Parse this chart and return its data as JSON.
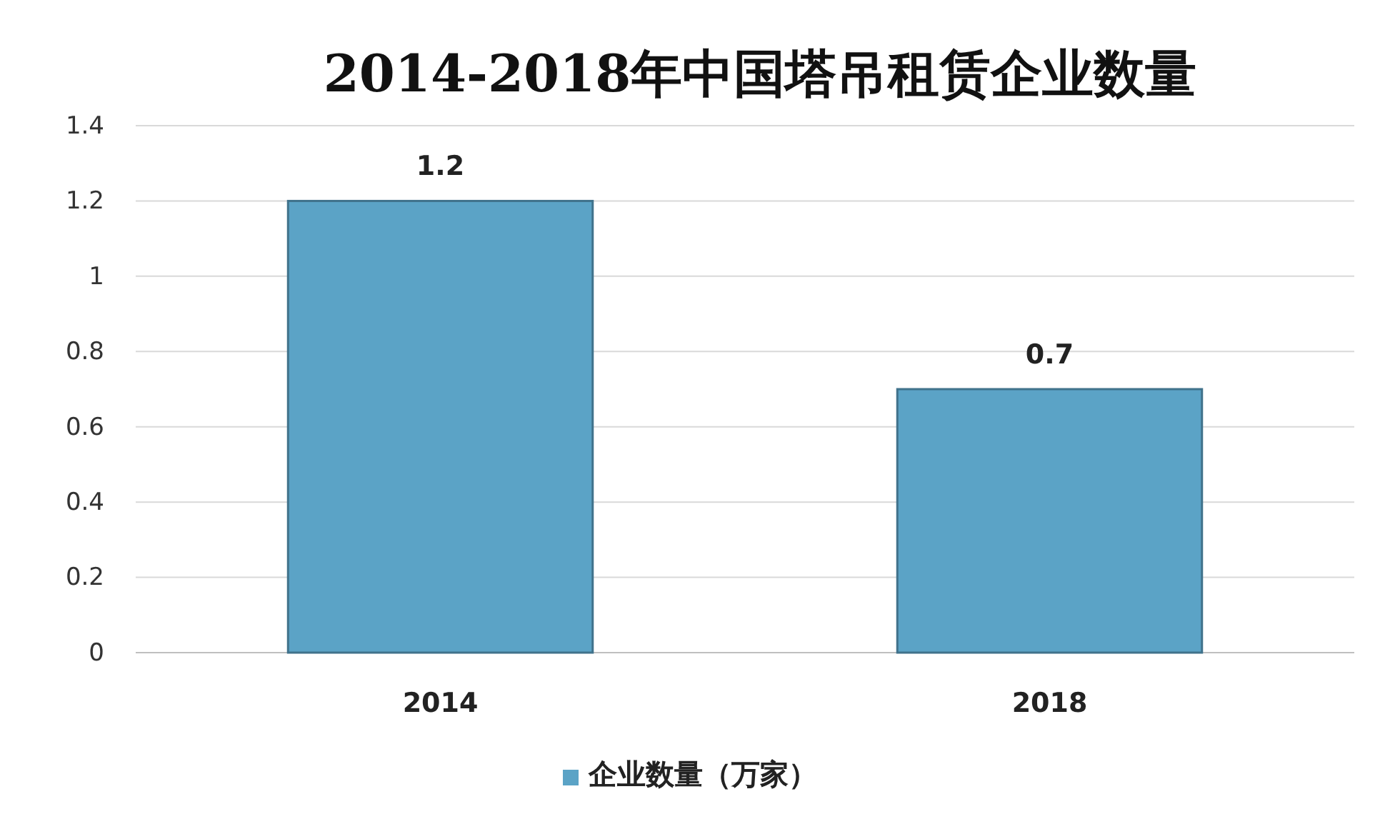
{
  "chart_data": {
    "type": "bar",
    "title": "2014-2018年中国塔吊租赁企业数量",
    "categories": [
      "2014",
      "2018"
    ],
    "series": [
      {
        "name": "企业数量（万家）",
        "color": "#5ba3c6",
        "values": [
          1.2,
          0.7
        ]
      }
    ],
    "ylim": [
      0,
      1.4
    ],
    "yticks": [
      0,
      {
        "value": 0.2,
        "label": "0.2"
      },
      {
        "value": 0.4,
        "label": "0.4"
      },
      {
        "value": 0.6,
        "label": "0.6"
      },
      {
        "value": 0.8,
        "label": "0.8"
      },
      1,
      {
        "value": 1.2,
        "label": "1.2"
      },
      {
        "value": 1.4,
        "label": "1.4"
      }
    ],
    "grid": "y",
    "legend": "bottom",
    "data_labels": true
  }
}
